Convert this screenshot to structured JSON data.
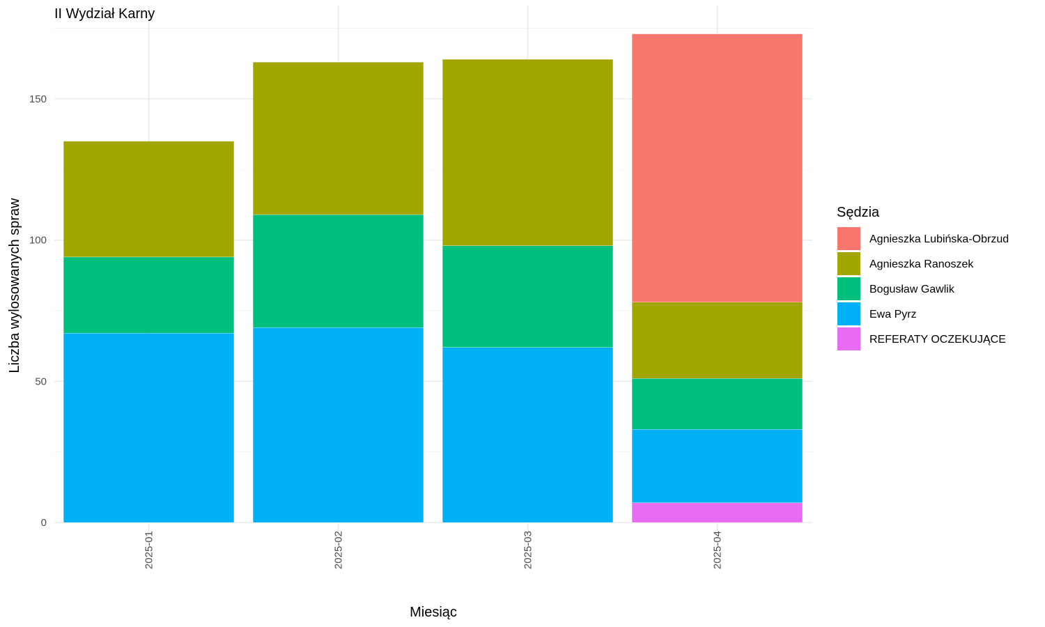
{
  "chart_data": {
    "type": "bar",
    "stacked": true,
    "title": "II Wydział Karny",
    "xlabel": "Miesiąc",
    "ylabel": "Liczba wylosowanych spraw",
    "categories": [
      "2025-01",
      "2025-02",
      "2025-03",
      "2025-04"
    ],
    "ylim": [
      0,
      180
    ],
    "yticks": [
      0,
      50,
      100,
      150
    ],
    "grid": true,
    "legend": {
      "title": "Sędzia",
      "position": "right"
    },
    "series": [
      {
        "name": "Agnieszka Lubińska-Obrzud",
        "color": "#F8766D",
        "values": [
          0,
          0,
          0,
          95
        ]
      },
      {
        "name": "Agnieszka Ranoszek",
        "color": "#A3A500",
        "values": [
          41,
          54,
          66,
          27
        ]
      },
      {
        "name": "Bogusław Gawlik",
        "color": "#00BF7D",
        "values": [
          27,
          40,
          36,
          18
        ]
      },
      {
        "name": "Ewa Pyrz",
        "color": "#00B0F6",
        "values": [
          67,
          69,
          62,
          26
        ]
      },
      {
        "name": "REFERATY OCZEKUJĄCE",
        "color": "#E76BF3",
        "values": [
          0,
          0,
          0,
          7
        ]
      }
    ]
  }
}
